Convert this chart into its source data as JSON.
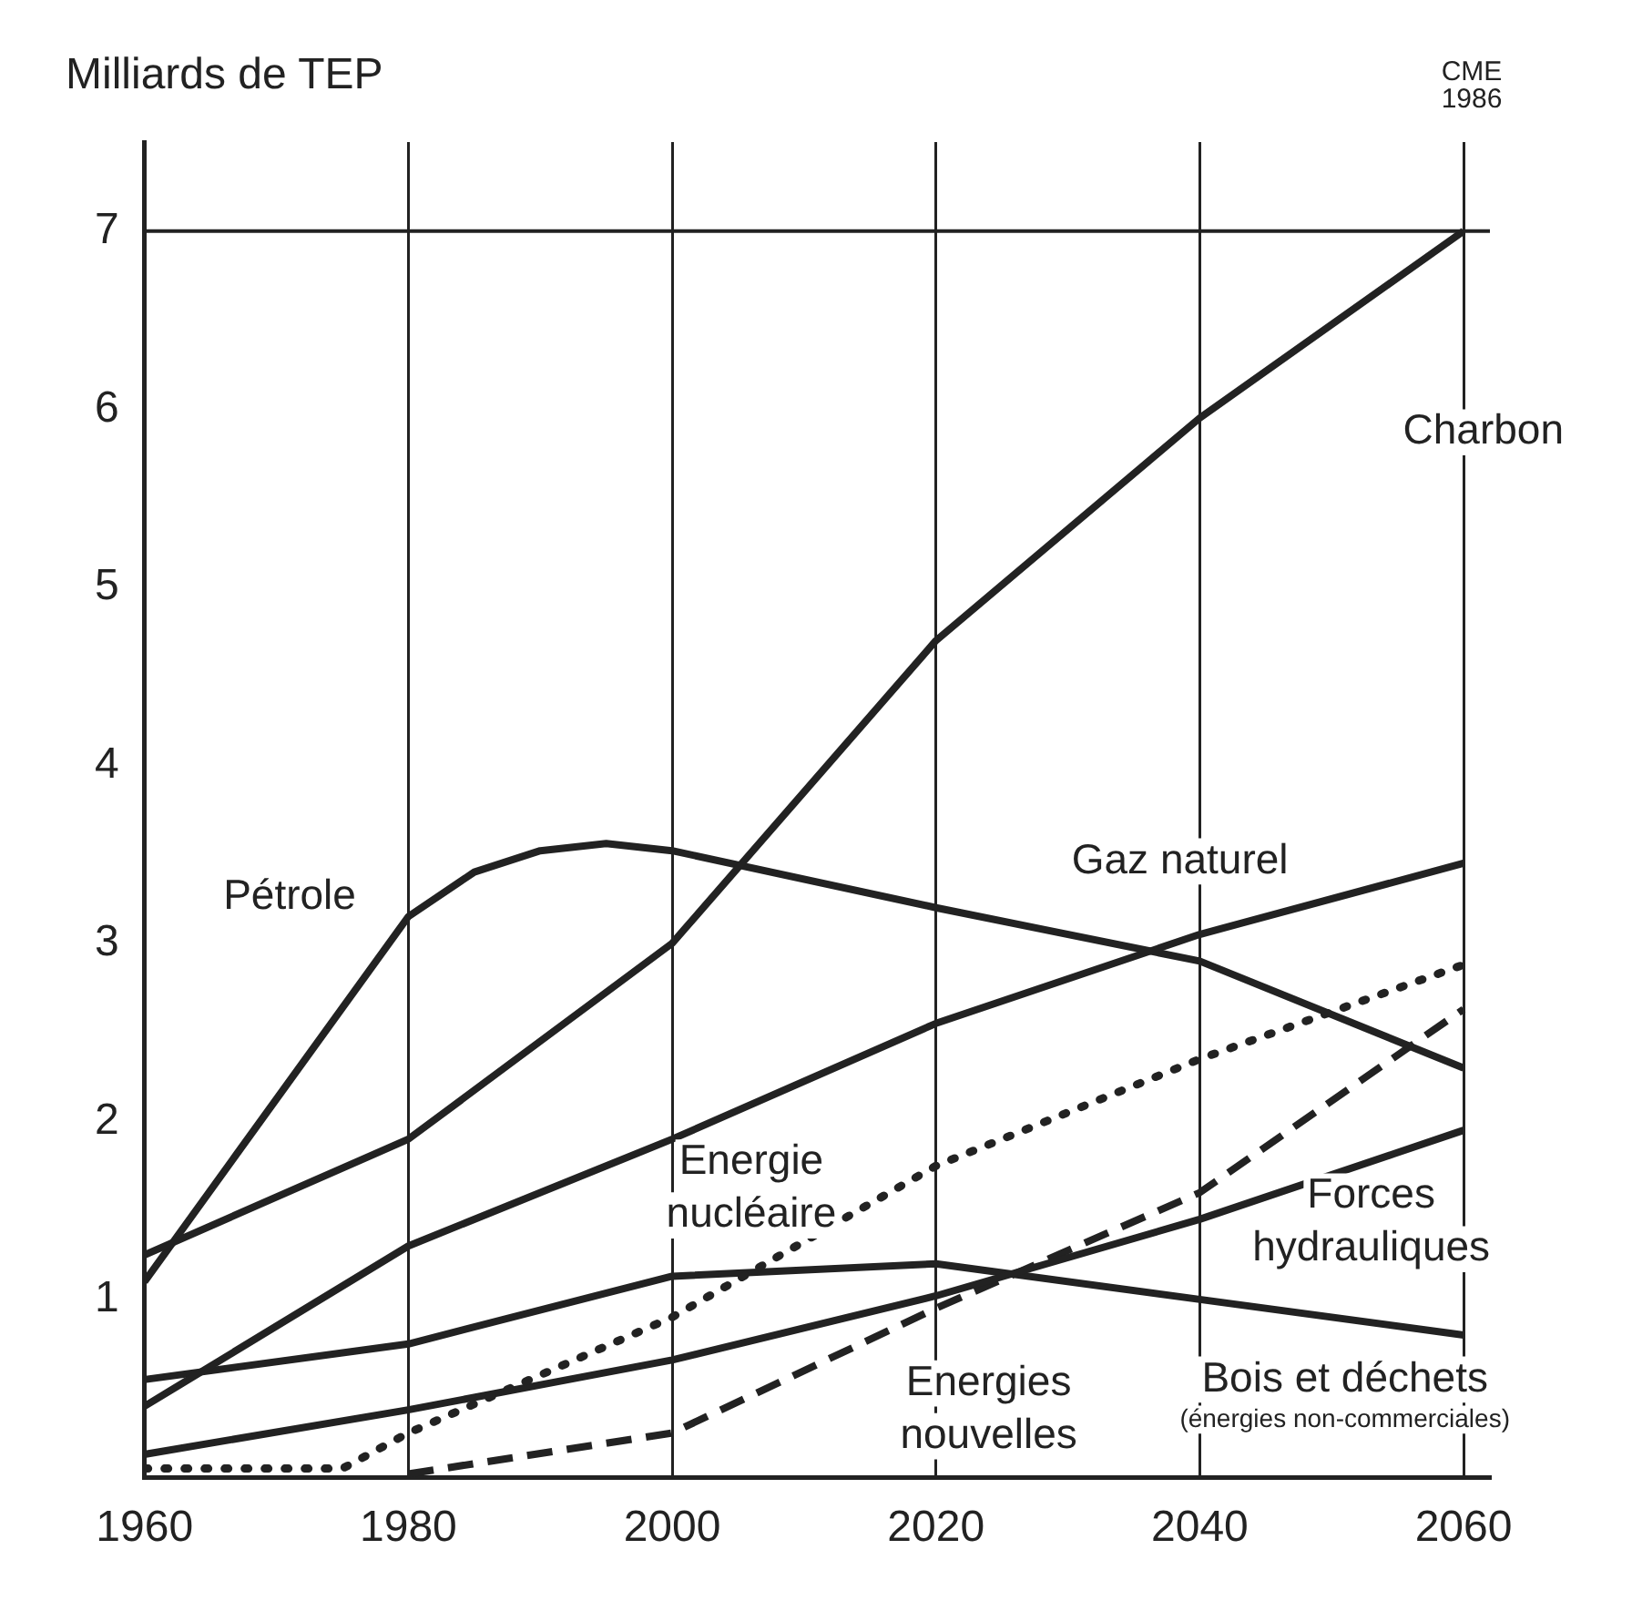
{
  "chart_data": {
    "type": "line",
    "ylabel": "Milliards de TEP",
    "annotations": [
      "CME 1986"
    ],
    "xlim": [
      1960,
      2062
    ],
    "ylim": [
      0,
      7.5
    ],
    "xticks": [
      1960,
      1980,
      2000,
      2020,
      2040,
      2060
    ],
    "yticks": [
      1,
      2,
      3,
      4,
      5,
      6,
      7
    ],
    "grid": "x",
    "legend": false,
    "marker": "none",
    "ref_lines": [
      {
        "axis": "y",
        "value": 7
      }
    ],
    "series": [
      {
        "name": "Charbon",
        "color": "#222222",
        "line_style": "solid",
        "x": [
          1960,
          1980,
          2000,
          2020,
          2040,
          2060
        ],
        "values": [
          1.25,
          1.9,
          3.0,
          4.7,
          5.95,
          7.0
        ]
      },
      {
        "name": "Pétrole",
        "color": "#222222",
        "line_style": "solid",
        "x": [
          1960,
          1980,
          1985,
          1990,
          1995,
          2000,
          2020,
          2040,
          2060
        ],
        "values": [
          1.1,
          3.15,
          3.4,
          3.52,
          3.56,
          3.52,
          3.2,
          2.9,
          2.3
        ]
      },
      {
        "name": "Gaz naturel",
        "color": "#222222",
        "line_style": "solid",
        "x": [
          1960,
          1980,
          2000,
          2020,
          2040,
          2060
        ],
        "values": [
          0.4,
          1.3,
          1.9,
          2.55,
          3.05,
          3.45
        ]
      },
      {
        "name": "Energie nucléaire",
        "color": "#222222",
        "line_style": "dotted",
        "x": [
          1960,
          1975,
          1980,
          2000,
          2020,
          2040,
          2060
        ],
        "values": [
          0.05,
          0.05,
          0.25,
          0.9,
          1.75,
          2.35,
          2.88
        ]
      },
      {
        "name": "Forces hydrauliques",
        "color": "#222222",
        "line_style": "solid",
        "x": [
          1960,
          1980,
          2000,
          2020,
          2040,
          2060
        ],
        "values": [
          0.13,
          0.38,
          0.66,
          1.02,
          1.45,
          1.95
        ]
      },
      {
        "name": "Bois et déchets (énergies non-commerciales)",
        "color": "#222222",
        "line_style": "solid",
        "x": [
          1960,
          1980,
          2000,
          2020,
          2040,
          2060
        ],
        "values": [
          0.55,
          0.75,
          1.13,
          1.2,
          1.0,
          0.8
        ]
      },
      {
        "name": "Energies nouvelles",
        "color": "#222222",
        "line_style": "dashed",
        "x": [
          1980,
          2000,
          2020,
          2040,
          2060
        ],
        "values": [
          0.02,
          0.25,
          0.95,
          1.6,
          2.63
        ]
      }
    ]
  }
}
